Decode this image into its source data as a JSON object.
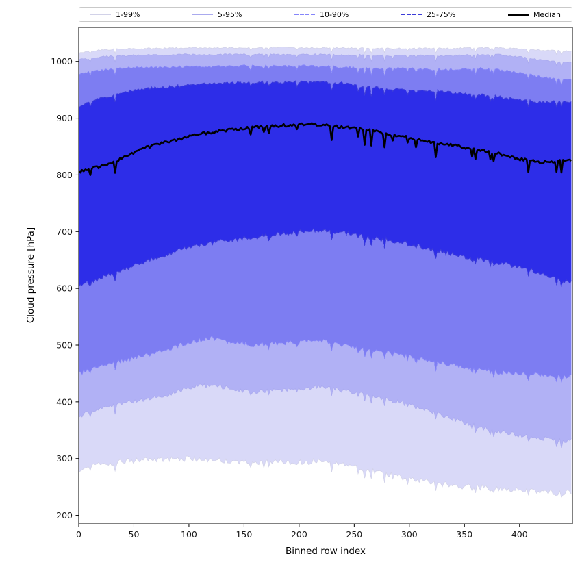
{
  "chart_data": {
    "type": "band",
    "title": "",
    "xlabel": "Binned row index",
    "ylabel": "Cloud pressure [hPa]",
    "xlim": [
      0,
      448
    ],
    "ylim": [
      185,
      1060
    ],
    "xticks": [
      0,
      50,
      100,
      150,
      200,
      250,
      300,
      350,
      400
    ],
    "yticks": [
      200,
      300,
      400,
      500,
      600,
      700,
      800,
      900,
      1000
    ],
    "legend_position": "top, horizontal, 5 entries",
    "grid": false,
    "x_control": [
      0,
      20,
      40,
      60,
      80,
      100,
      120,
      140,
      160,
      180,
      200,
      220,
      240,
      260,
      280,
      300,
      320,
      340,
      360,
      380,
      400,
      420,
      440
    ],
    "bands": [
      {
        "label": "1-99%",
        "fill": "#d9d9f8",
        "stroke": "#d2d2e8",
        "dash": "",
        "stroke_width": 0.8,
        "upper": {
          "name": "p99",
          "values": [
            1015,
            1020,
            1022,
            1023,
            1023,
            1024,
            1024,
            1024,
            1024,
            1025,
            1024,
            1024,
            1024,
            1023,
            1023,
            1023,
            1023,
            1023,
            1024,
            1024,
            1022,
            1020,
            1018
          ],
          "jitter": 1.2,
          "spike": 8
        },
        "lower": {
          "name": "p1",
          "values": [
            280,
            290,
            295,
            298,
            298,
            300,
            298,
            295,
            292,
            295,
            293,
            296,
            290,
            282,
            272,
            265,
            258,
            252,
            250,
            248,
            245,
            242,
            240
          ],
          "jitter": 5,
          "spike": 16
        }
      },
      {
        "label": "5-95%",
        "fill": "#b1b1f5",
        "stroke": "#aaaaee",
        "dash": "",
        "stroke_width": 0.8,
        "upper": {
          "name": "p95",
          "values": [
            1003,
            1008,
            1010,
            1011,
            1011,
            1012,
            1012,
            1012,
            1012,
            1012,
            1012,
            1012,
            1011,
            1011,
            1010,
            1010,
            1010,
            1010,
            1012,
            1012,
            1008,
            1002,
            998
          ],
          "jitter": 1.5,
          "spike": 10
        },
        "lower": {
          "name": "p5",
          "values": [
            375,
            388,
            398,
            405,
            412,
            425,
            430,
            422,
            418,
            420,
            422,
            428,
            420,
            412,
            405,
            395,
            382,
            370,
            358,
            348,
            342,
            336,
            332
          ],
          "jitter": 4,
          "spike": 14
        }
      },
      {
        "label": "10-90%",
        "fill": "#7d7df2",
        "stroke": "#8585fa",
        "dash": "4,3",
        "stroke_width": 1,
        "upper": {
          "name": "p90",
          "values": [
            978,
            985,
            988,
            990,
            990,
            991,
            991,
            992,
            992,
            992,
            992,
            991,
            990,
            988,
            988,
            987,
            986,
            986,
            988,
            986,
            980,
            972,
            968
          ],
          "jitter": 2,
          "spike": 12
        },
        "lower": {
          "name": "p10",
          "values": [
            450,
            462,
            472,
            482,
            492,
            505,
            512,
            505,
            500,
            503,
            505,
            508,
            500,
            492,
            488,
            480,
            472,
            465,
            458,
            452,
            450,
            447,
            445
          ],
          "jitter": 4,
          "spike": 14
        }
      },
      {
        "label": "25-75%",
        "fill": "#2d2de8",
        "stroke": "#3c3cd8",
        "dash": "6,3",
        "stroke_width": 1.2,
        "upper": {
          "name": "p75",
          "values": [
            920,
            935,
            945,
            952,
            955,
            958,
            960,
            962,
            963,
            963,
            964,
            963,
            962,
            955,
            952,
            950,
            948,
            945,
            942,
            938,
            932,
            928,
            930
          ],
          "jitter": 2.5,
          "spike": 14
        },
        "lower": {
          "name": "p25",
          "values": [
            605,
            618,
            632,
            648,
            660,
            672,
            680,
            686,
            690,
            695,
            700,
            703,
            698,
            690,
            685,
            678,
            668,
            660,
            652,
            645,
            638,
            625,
            612
          ],
          "jitter": 4,
          "spike": 14
        }
      }
    ],
    "median": {
      "label": "Median",
      "color": "#000000",
      "width": 2.6,
      "values": [
        805,
        815,
        830,
        848,
        858,
        868,
        875,
        880,
        884,
        886,
        890,
        888,
        884,
        880,
        872,
        866,
        858,
        852,
        845,
        838,
        828,
        822,
        825
      ],
      "jitter": 2.5,
      "spike": 26
    },
    "axis_color": "#000000",
    "tick_label_color": "#1a1a1a"
  }
}
